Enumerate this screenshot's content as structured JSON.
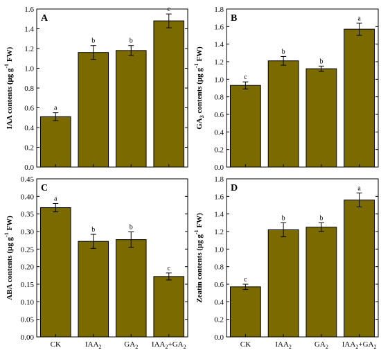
{
  "colors": {
    "bar": "#7a6a00",
    "edge": "#000000",
    "background": "#ffffff"
  },
  "chart_data": [
    {
      "type": "bar",
      "panel": "A",
      "categories": [
        "CK",
        "IAA2",
        "GA2",
        "IAA2+GA2"
      ],
      "tick_labels_visible": false,
      "values": [
        0.51,
        1.16,
        1.18,
        1.48
      ],
      "errors": [
        0.04,
        0.07,
        0.05,
        0.07
      ],
      "letters": [
        "a",
        "b",
        "b",
        "c"
      ],
      "ylabel": {
        "main": "IAA contents (μg g",
        "sup": "-1",
        "end": " FW)"
      },
      "ylim": [
        0,
        1.6
      ],
      "yticks": [
        "0.0",
        "0.2",
        "0.4",
        "0.6",
        "0.8",
        "1.0",
        "1.2",
        "1.4",
        "1.6"
      ],
      "grid": false
    },
    {
      "type": "bar",
      "panel": "B",
      "categories": [
        "CK",
        "IAA2",
        "GA2",
        "IAA2+GA2"
      ],
      "tick_labels_visible": false,
      "values": [
        0.93,
        1.21,
        1.12,
        1.57
      ],
      "errors": [
        0.04,
        0.05,
        0.03,
        0.07
      ],
      "letters": [
        "c",
        "b",
        "b",
        "a"
      ],
      "ylabel": {
        "main": "GA",
        "sub": "3",
        "rest": " contents (μg g",
        "sup": "-1",
        "end": " FW)"
      },
      "ylim": [
        0,
        1.8
      ],
      "yticks": [
        "0.0",
        "0.2",
        "0.4",
        "0.6",
        "0.8",
        "1.0",
        "1.2",
        "1.4",
        "1.6",
        "1.8"
      ],
      "grid": false
    },
    {
      "type": "bar",
      "panel": "C",
      "categories": [
        "CK",
        "IAA2",
        "GA2",
        "IAA2+GA2"
      ],
      "tick_labels_visible": true,
      "values": [
        0.368,
        0.272,
        0.277,
        0.172
      ],
      "errors": [
        0.012,
        0.02,
        0.022,
        0.01
      ],
      "letters": [
        "a",
        "b",
        "b",
        "c"
      ],
      "ylabel": {
        "main": "ABA contents (μg g",
        "sup": "-1",
        "end": " FW)"
      },
      "ylim": [
        0,
        0.45
      ],
      "yticks": [
        "0.00",
        "0.05",
        "0.10",
        "0.15",
        "0.20",
        "0.25",
        "0.30",
        "0.35",
        "0.40",
        "0.45"
      ],
      "grid": false
    },
    {
      "type": "bar",
      "panel": "D",
      "categories": [
        "CK",
        "IAA2",
        "GA2",
        "IAA2+GA2"
      ],
      "tick_labels_visible": true,
      "values": [
        0.57,
        1.22,
        1.25,
        1.56
      ],
      "errors": [
        0.03,
        0.08,
        0.05,
        0.08
      ],
      "letters": [
        "c",
        "b",
        "b",
        "a"
      ],
      "ylabel": {
        "main": "Zeatin contents (μg g",
        "sup": "-1",
        "end": " FW)"
      },
      "ylim": [
        0,
        1.8
      ],
      "yticks": [
        "0.0",
        "0.2",
        "0.4",
        "0.6",
        "0.8",
        "1.0",
        "1.2",
        "1.4",
        "1.6",
        "1.8"
      ],
      "grid": false
    }
  ]
}
